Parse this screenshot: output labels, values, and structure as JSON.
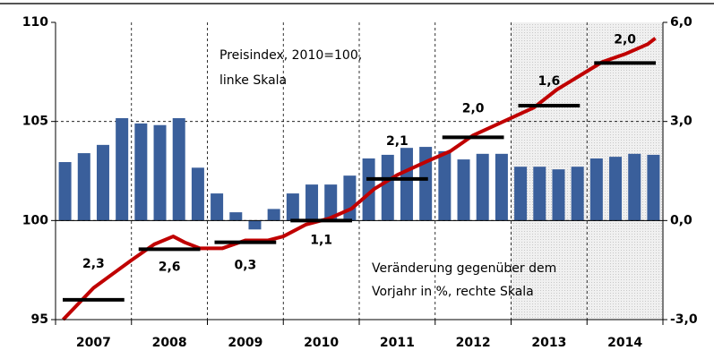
{
  "chart_data": {
    "type": "bar_line",
    "categories": [
      "2007",
      "2008",
      "2009",
      "2010",
      "2011",
      "2012",
      "2013",
      "2014"
    ],
    "xlim": [
      2007,
      2015
    ],
    "ylim": [
      95,
      110
    ],
    "yticks": [
      95,
      100,
      105,
      110
    ],
    "y2lim": [
      -3,
      6
    ],
    "y2ticks": [
      {
        "value": -3,
        "label": "-3,0"
      },
      {
        "value": 0,
        "label": "0,0"
      },
      {
        "value": 3,
        "label": "3,0"
      },
      {
        "value": 6,
        "label": "6,0"
      }
    ],
    "bars": {
      "axis": "y2",
      "color": "#3a5f9b",
      "values": [
        1.77,
        2.04,
        2.29,
        3.1,
        2.94,
        2.89,
        3.1,
        1.6,
        0.82,
        0.25,
        -0.27,
        0.35,
        0.82,
        1.09,
        1.09,
        1.36,
        1.88,
        1.99,
        2.2,
        2.23,
        2.1,
        1.85,
        2.02,
        2.02,
        1.63,
        1.63,
        1.55,
        1.63,
        1.88,
        1.93,
        2.02,
        1.99
      ]
    },
    "line": {
      "color": "#c00000",
      "x": [
        2007.1,
        2007.5,
        2008.0,
        2008.3,
        2008.55,
        2008.7,
        2008.9,
        2009.2,
        2009.5,
        2009.8,
        2010.0,
        2010.3,
        2010.6,
        2010.9,
        2011.2,
        2011.5,
        2011.9,
        2012.2,
        2012.5,
        2012.9,
        2013.3,
        2013.6,
        2013.9,
        2014.2,
        2014.5,
        2014.8,
        2014.9
      ],
      "values": [
        95.0,
        96.6,
        98.0,
        98.8,
        99.2,
        98.9,
        98.6,
        98.6,
        99.0,
        99.0,
        99.2,
        99.8,
        100.1,
        100.6,
        101.6,
        102.3,
        103.0,
        103.5,
        104.3,
        105.0,
        105.7,
        106.6,
        107.3,
        108.0,
        108.4,
        108.9,
        109.2
      ]
    },
    "annual": {
      "color": "#000000",
      "values": [
        96.0,
        98.55,
        98.9,
        100.0,
        102.1,
        104.2,
        105.8,
        107.95
      ]
    },
    "annual_change": {
      "values": [
        2.3,
        2.6,
        0.3,
        1.1,
        2.1,
        2.0,
        1.6,
        2.0
      ],
      "value_labels": [
        "2,3",
        "2,6",
        "0,3",
        "1,1",
        "2,1",
        "2,0",
        "1,6",
        "2,0"
      ]
    },
    "annotations": [
      "Preisindex, 2010=100,",
      "linke Skala",
      "Veränderung gegenüber dem",
      "Vorjahr in %, rechte Skala"
    ]
  }
}
